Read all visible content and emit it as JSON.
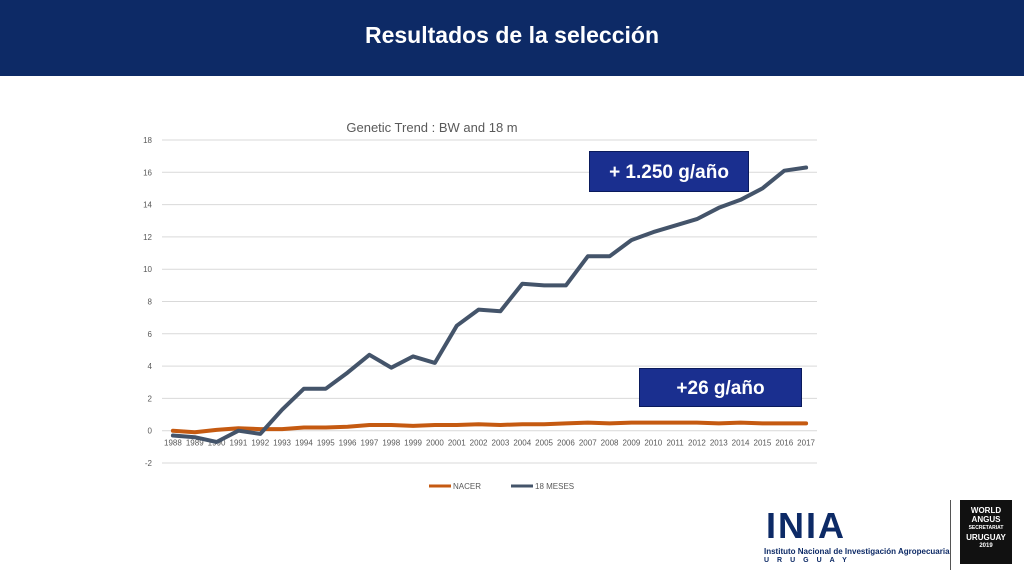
{
  "slide": {
    "title": "Resultados de la selección"
  },
  "callouts": {
    "top": "+ 1.250 g/año",
    "bottom": "+26 g/año"
  },
  "logos": {
    "inia_letters": "INIA",
    "inia_name": "Instituto Nacional de Investigación Agropecuaria",
    "inia_country": "URUGUAY",
    "world_angus": [
      "WORLD",
      "ANGUS",
      "SECRETARIAT",
      "URUGUAY",
      "2019"
    ]
  },
  "colors": {
    "header": "#0d2a66",
    "nacer": "#c55a11",
    "meses18": "#44546a",
    "callout": "#1a2f8f"
  },
  "chart_data": {
    "type": "line",
    "title": "Genetic Trend : BW and 18 m",
    "categories": [
      "1988",
      "1989",
      "1990",
      "1991",
      "1992",
      "1993",
      "1994",
      "1995",
      "1996",
      "1997",
      "1998",
      "1999",
      "2000",
      "2001",
      "2002",
      "2003",
      "2004",
      "2005",
      "2006",
      "2007",
      "2008",
      "2009",
      "2010",
      "2011",
      "2012",
      "2013",
      "2014",
      "2015",
      "2016",
      "2017"
    ],
    "series": [
      {
        "name": "NACER",
        "color": "#c55a11",
        "values": [
          0.0,
          -0.1,
          0.05,
          0.15,
          0.1,
          0.1,
          0.2,
          0.2,
          0.25,
          0.35,
          0.35,
          0.3,
          0.35,
          0.35,
          0.4,
          0.35,
          0.4,
          0.4,
          0.45,
          0.5,
          0.45,
          0.5,
          0.5,
          0.5,
          0.5,
          0.45,
          0.5,
          0.45,
          0.45,
          0.45
        ]
      },
      {
        "name": "18 MESES",
        "color": "#44546a",
        "values": [
          -0.3,
          -0.4,
          -0.7,
          0.0,
          -0.2,
          1.3,
          2.6,
          2.6,
          3.6,
          4.7,
          3.9,
          4.6,
          4.2,
          6.5,
          7.5,
          7.4,
          9.1,
          9.0,
          9.0,
          10.8,
          10.8,
          11.8,
          12.3,
          12.7,
          13.1,
          13.8,
          14.3,
          15.0,
          16.1,
          16.3
        ]
      }
    ],
    "ylim": [
      -2,
      18
    ],
    "yticks": [
      -2,
      0,
      2,
      4,
      6,
      8,
      10,
      12,
      14,
      16,
      18
    ],
    "grid": true,
    "legend": "bottom"
  }
}
